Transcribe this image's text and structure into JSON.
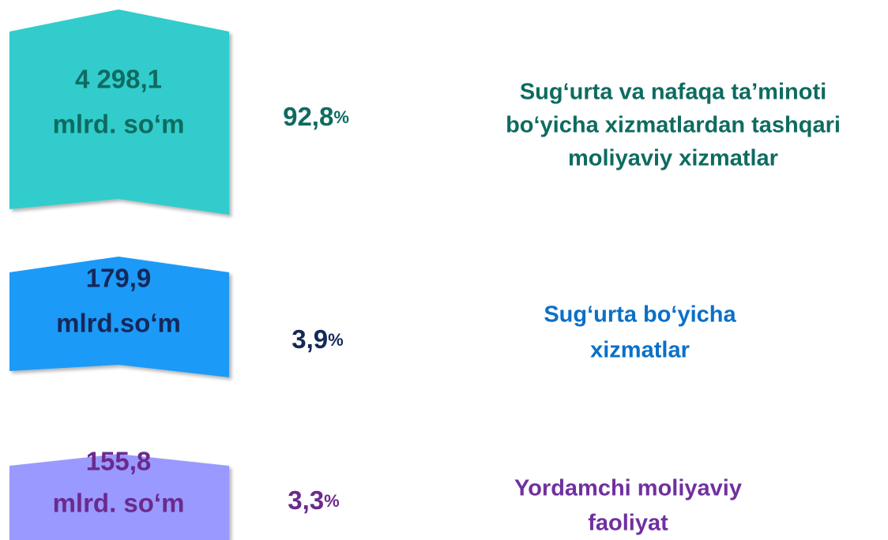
{
  "items": [
    {
      "amount": [
        "4 298,1",
        "mlrd. so‘m"
      ],
      "percent": "92,8",
      "percent_sign": "%",
      "label": [
        "Sug‘urta va nafaqa ta’minoti",
        "bo‘yicha xizmatlardan tashqari",
        "moliyaviy xizmatlar"
      ]
    },
    {
      "amount": [
        "179,9",
        "mlrd.so‘m"
      ],
      "percent": "3,9",
      "percent_sign": "%",
      "label": [
        "Sug‘urta bo‘yicha",
        "xizmatlar"
      ]
    },
    {
      "amount": [
        "155,8",
        "mlrd. so‘m"
      ],
      "percent": "3,3",
      "percent_sign": "%",
      "label": [
        "Yordamchi moliyaviy",
        "faoliyat"
      ]
    }
  ]
}
